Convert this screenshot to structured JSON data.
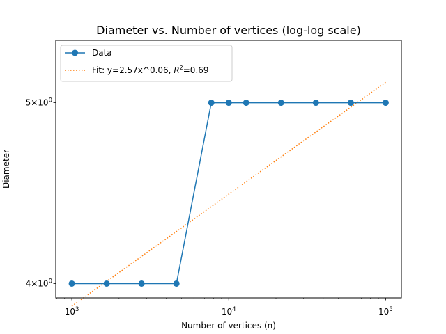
{
  "chart_data": {
    "type": "line",
    "title": "Diameter vs. Number of vertices (log-log scale)",
    "xlabel": "Number of vertices (n)",
    "ylabel": "Diameter",
    "xscale": "log",
    "yscale": "log",
    "xlim": [
      790,
      126000
    ],
    "ylim": [
      3.93,
      5.4
    ],
    "grid": false,
    "legend_position": "top-left",
    "x_major_ticks": [
      {
        "value": 1000,
        "base": "10",
        "exp": "3"
      },
      {
        "value": 10000,
        "base": "10",
        "exp": "4"
      },
      {
        "value": 100000,
        "base": "10",
        "exp": "5"
      }
    ],
    "y_major_ticks": [
      {
        "value": 4,
        "mant": "4",
        "mul": "×",
        "base": "10",
        "exp": "0"
      },
      {
        "value": 5,
        "mant": "5",
        "mul": "×",
        "base": "10",
        "exp": "0"
      }
    ],
    "series": [
      {
        "name": "Data",
        "style": "line-marker",
        "color": "#1f77b4",
        "x": [
          1000,
          1668,
          2783,
          4642,
          7743,
          10000,
          12915,
          21544,
          35938,
          59948,
          100000
        ],
        "y": [
          4,
          4,
          4,
          4,
          5,
          5,
          5,
          5,
          5,
          5,
          5
        ]
      },
      {
        "name": "Fit: y=2.57x^0.06, ",
        "name_math_var": "R",
        "name_math_exp": "2",
        "name_tail": "=0.69",
        "style": "dotted",
        "color": "#ff7f0e",
        "coef": 2.57,
        "exponent": 0.06,
        "x_range": [
          1000,
          100000
        ]
      }
    ]
  }
}
